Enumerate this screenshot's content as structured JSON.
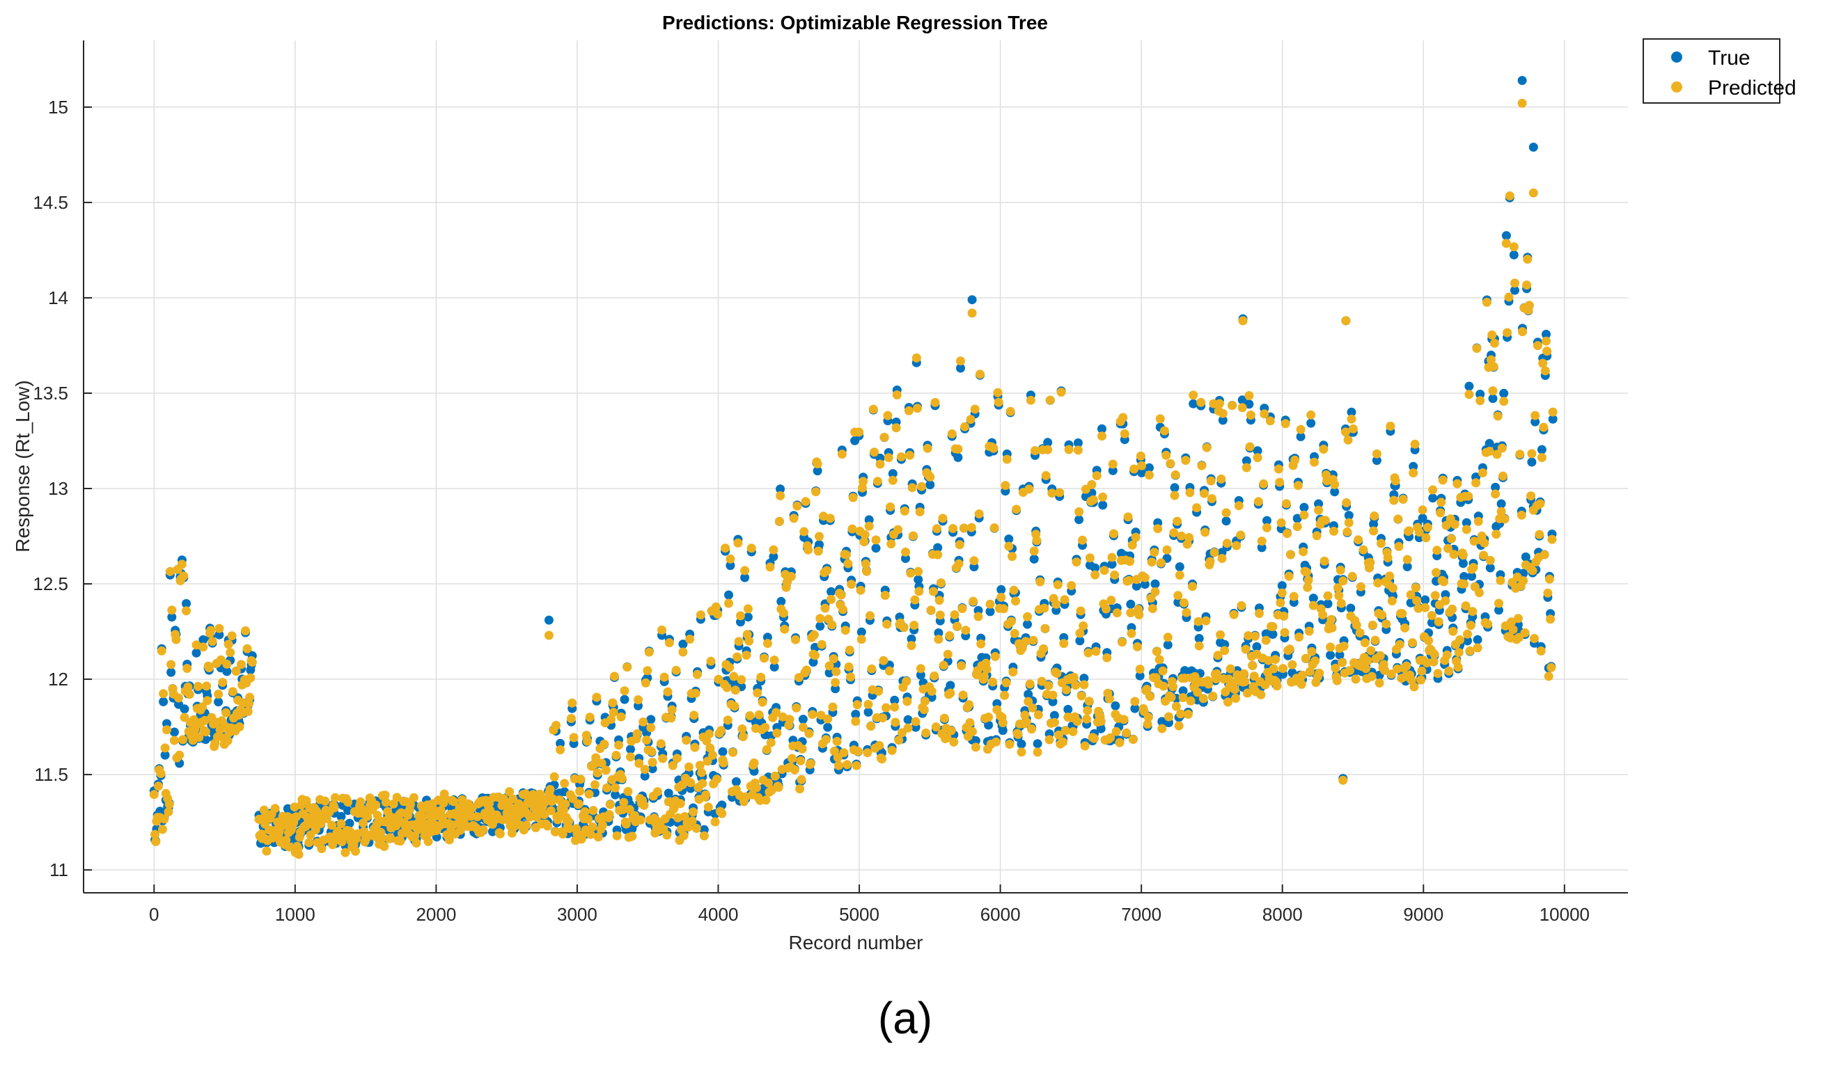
{
  "chart_data": {
    "type": "scatter",
    "title": "Predictions: Optimizable Regression Tree",
    "xlabel": "Record number",
    "ylabel": "Response (Rt_Low)",
    "xlim": [
      -500,
      10450
    ],
    "ylim": [
      10.88,
      15.35
    ],
    "xticks": [
      0,
      1000,
      2000,
      3000,
      4000,
      5000,
      6000,
      7000,
      8000,
      9000,
      10000
    ],
    "xtick_labels": [
      "0",
      "1000",
      "2000",
      "3000",
      "4000",
      "5000",
      "6000",
      "7000",
      "8000",
      "9000",
      "10000"
    ],
    "yticks": [
      11,
      11.5,
      12,
      12.5,
      13,
      13.5,
      14,
      14.5,
      15
    ],
    "ytick_labels": [
      "11",
      "11.5",
      "12",
      "12.5",
      "13",
      "13.5",
      "14",
      "14.5",
      "15"
    ],
    "grid": true,
    "legend_position": "top-right (outside plot area)",
    "colors": {
      "true": "#0072BD",
      "predicted": "#EDB120"
    },
    "series": [
      {
        "name": "True",
        "color": "#0072BD"
      },
      {
        "name": "Predicted",
        "color": "#EDB120"
      }
    ],
    "trend_profile": {
      "x": [
        0,
        100,
        200,
        300,
        400,
        500,
        600,
        700,
        750,
        1000,
        1500,
        2000,
        2500,
        2800,
        2850,
        3000,
        3500,
        3900,
        4000,
        4500,
        5000,
        5500,
        6000,
        6500,
        7000,
        7500,
        8000,
        8500,
        9000,
        9200,
        9500,
        9700,
        9900
      ],
      "low": [
        11.08,
        11.25,
        11.55,
        11.65,
        11.65,
        11.65,
        11.7,
        11.9,
        11.1,
        11.1,
        11.12,
        11.15,
        11.2,
        11.22,
        11.15,
        11.15,
        11.15,
        11.12,
        11.25,
        11.35,
        11.45,
        11.6,
        11.55,
        11.55,
        11.6,
        11.8,
        11.9,
        11.95,
        11.9,
        11.95,
        12.05,
        12.1,
        11.95
      ],
      "high": [
        12.05,
        12.6,
        12.75,
        12.3,
        12.3,
        12.25,
        12.25,
        12.3,
        11.3,
        11.35,
        11.38,
        11.38,
        11.4,
        11.45,
        12.0,
        11.85,
        12.3,
        12.4,
        12.7,
        13.2,
        13.55,
        13.85,
        13.7,
        13.8,
        13.35,
        13.75,
        13.45,
        13.5,
        13.3,
        13.6,
        14.35,
        15.15,
        13.75
      ]
    },
    "notable_points": [
      {
        "x": 2800,
        "true": 12.31,
        "predicted": 12.23
      },
      {
        "x": 9700,
        "true": 15.14,
        "predicted": 15.02
      },
      {
        "x": 9780,
        "true": 14.79,
        "predicted": 14.55
      },
      {
        "x": 5800,
        "true": 13.99,
        "predicted": 13.92
      },
      {
        "x": 8450,
        "true": 13.88,
        "predicted": 13.88
      },
      {
        "x": 7720,
        "true": 13.89,
        "predicted": 13.88
      },
      {
        "x": 8430,
        "true": 11.48,
        "predicted": 11.47
      }
    ]
  },
  "caption": "(a)"
}
